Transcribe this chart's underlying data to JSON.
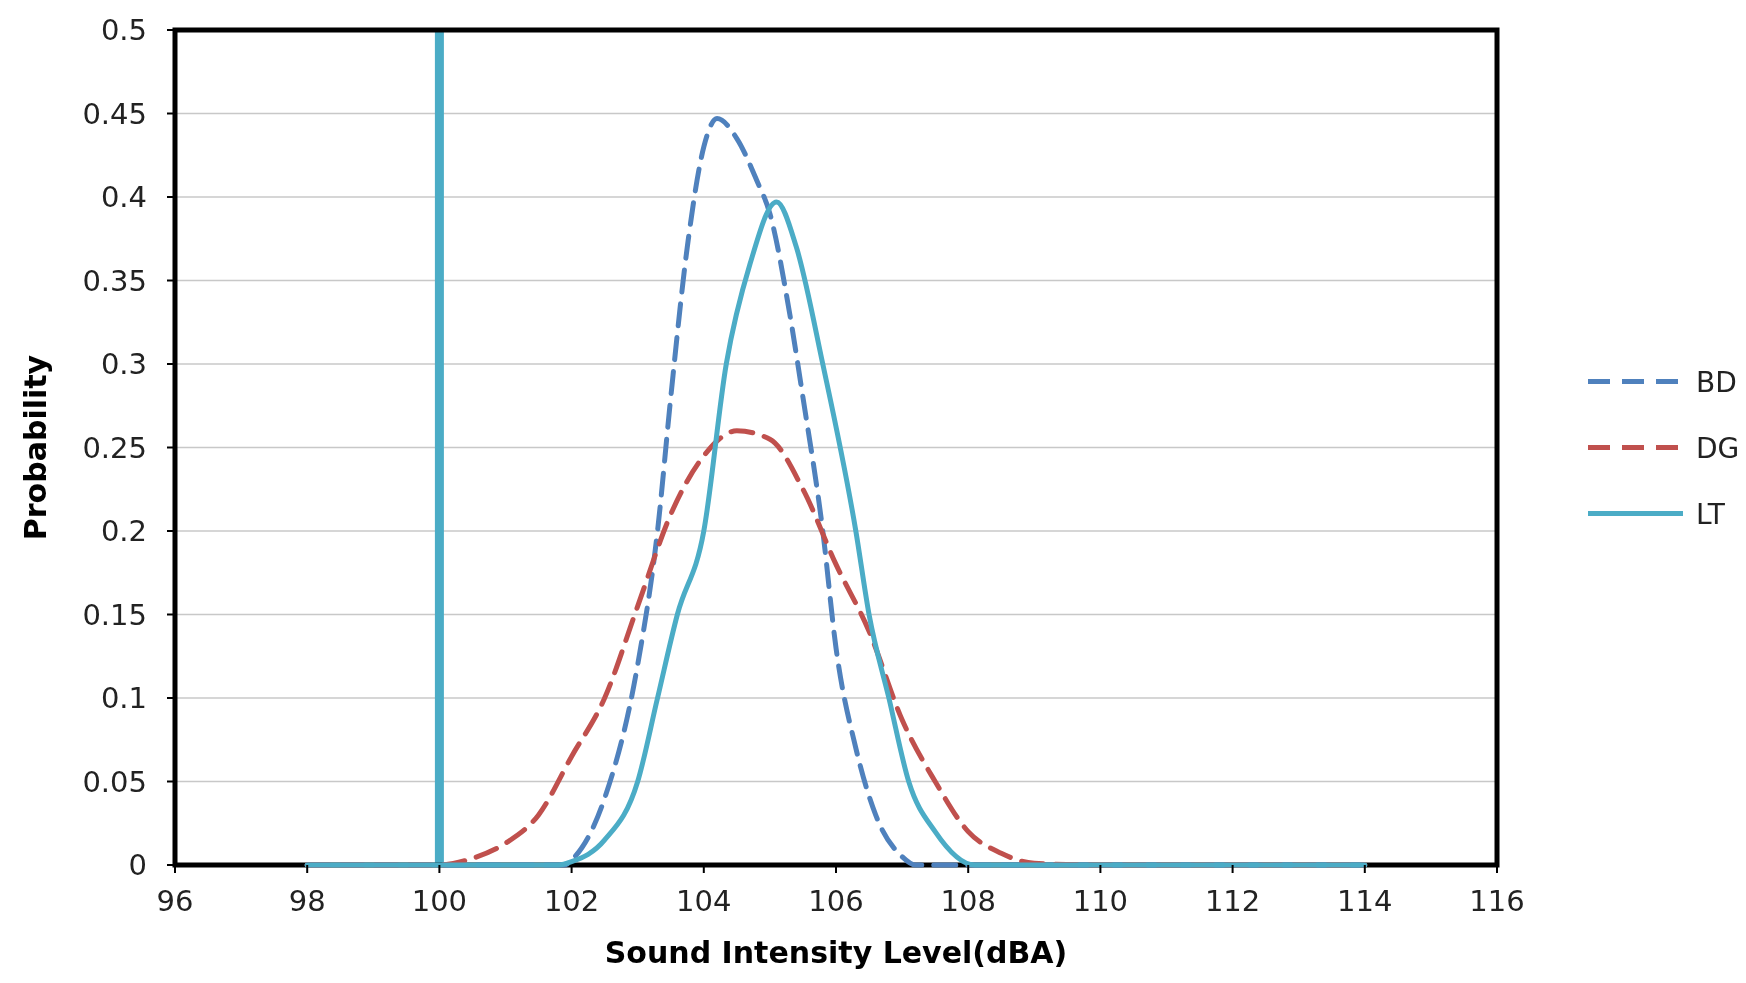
{
  "chart_data": {
    "type": "line",
    "xlabel": "Sound Intensity Level(dBA)",
    "ylabel": "Probability",
    "xlim": [
      96,
      116
    ],
    "xticks": [
      96,
      98,
      100,
      102,
      104,
      106,
      108,
      110,
      112,
      114,
      116
    ],
    "ylim": [
      0,
      0.5
    ],
    "yticks": [
      0,
      0.05,
      0.1,
      0.15,
      0.2,
      0.25,
      0.3,
      0.35,
      0.4,
      0.45,
      0.5
    ],
    "grid": "y",
    "legend": "right",
    "marker": "none",
    "ref_lines": [
      {
        "axis": "x",
        "value": 100,
        "color": "#4bacc6"
      }
    ],
    "series": [
      {
        "name": "BD",
        "color": "#4f81bd",
        "line_style": "dashed",
        "x": [
          98,
          101.9,
          102,
          102.5,
          103,
          103.3,
          103.5,
          103.75,
          104,
          104.2,
          104.5,
          104.8,
          105,
          105.3,
          105.5,
          105.8,
          106,
          106.3,
          106.6,
          107,
          107.2,
          114
        ],
        "values": [
          0,
          0,
          0.003,
          0.04,
          0.12,
          0.2,
          0.28,
          0.37,
          0.43,
          0.447,
          0.435,
          0.41,
          0.39,
          0.33,
          0.28,
          0.2,
          0.13,
          0.07,
          0.03,
          0.005,
          0,
          0
        ]
      },
      {
        "name": "DG",
        "color": "#c0504d",
        "line_style": "dashed",
        "x": [
          98,
          100,
          100.5,
          101,
          101.5,
          102,
          102.5,
          103,
          103.5,
          104,
          104.5,
          105,
          105.5,
          106,
          106.5,
          107,
          107.5,
          108,
          108.5,
          109,
          110,
          114
        ],
        "values": [
          0,
          0,
          0.004,
          0.013,
          0.03,
          0.065,
          0.1,
          0.155,
          0.21,
          0.245,
          0.26,
          0.255,
          0.225,
          0.18,
          0.14,
          0.087,
          0.05,
          0.02,
          0.007,
          0.001,
          0,
          0
        ]
      },
      {
        "name": "LT",
        "color": "#4bacc6",
        "line_style": "solid",
        "x": [
          98,
          101.8,
          102,
          102.5,
          103,
          103.3,
          103.6,
          104,
          104.34,
          104.7,
          105.1,
          105.4,
          105.8,
          106.3,
          106.5,
          106.8,
          107.1,
          107.5,
          108.1,
          114
        ],
        "values": [
          0,
          0,
          0.002,
          0.015,
          0.05,
          0.1,
          0.15,
          0.2,
          0.3,
          0.36,
          0.397,
          0.37,
          0.3,
          0.2,
          0.15,
          0.1,
          0.05,
          0.02,
          0,
          0
        ]
      }
    ]
  }
}
